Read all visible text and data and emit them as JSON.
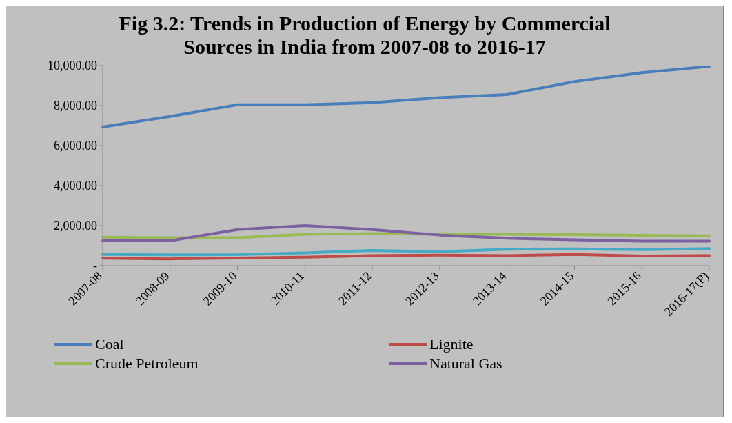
{
  "chart_data": {
    "type": "line",
    "title": "Fig 3.2: Trends in Production of Energy by Commercial Sources in India from 2007-08 to 2016-17",
    "categories": [
      "2007-08",
      "2008-09",
      "2009-10",
      "2010-11",
      "2011-12",
      "2012-13",
      "2013-14",
      "2014-15",
      "2015-16",
      "2016-17(P)"
    ],
    "series": [
      {
        "name": "Coal",
        "color": "#4a7ebb",
        "values": [
          6930,
          7460,
          8040,
          8040,
          8150,
          8400,
          8550,
          9200,
          9650,
          9960
        ]
      },
      {
        "name": "Lignite",
        "color": "#be4b48",
        "values": [
          370,
          340,
          380,
          420,
          500,
          530,
          500,
          560,
          480,
          500
        ]
      },
      {
        "name": "Crude Petroleum",
        "color": "#98b954",
        "values": [
          1420,
          1400,
          1400,
          1570,
          1600,
          1570,
          1570,
          1550,
          1520,
          1490
        ]
      },
      {
        "name": "Natural Gas",
        "color": "#7d60a0",
        "values": [
          1240,
          1240,
          1800,
          2000,
          1800,
          1530,
          1370,
          1290,
          1220,
          1220
        ]
      },
      {
        "color": "#46aac5",
        "values": [
          560,
          540,
          550,
          640,
          760,
          700,
          820,
          840,
          800,
          850
        ]
      }
    ],
    "ylim": [
      0,
      10000
    ],
    "yticks": [
      {
        "value": 0,
        "label": "-"
      },
      {
        "value": 2000,
        "label": "2,000.00"
      },
      {
        "value": 4000,
        "label": "4,000.00"
      },
      {
        "value": 6000,
        "label": "6,000.00"
      },
      {
        "value": 8000,
        "label": "8,000.00"
      },
      {
        "value": 10000,
        "label": "10,000.00"
      }
    ],
    "grid": false,
    "legend": "bottom",
    "marker": "none",
    "line_style": "solid"
  }
}
